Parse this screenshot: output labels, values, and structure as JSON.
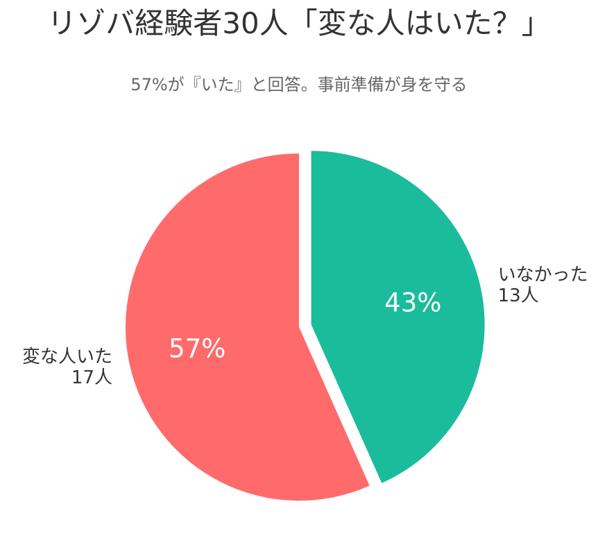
{
  "chart_data": {
    "type": "pie",
    "title": "リゾバ経験者30人「変な人はいた？」",
    "subtitle": "57%が『いた』と回答。事前準備が身を守る",
    "categories": [
      "変な人いた",
      "いなかった"
    ],
    "values": [
      17,
      13
    ],
    "percent_labels": [
      "57%",
      "43%"
    ],
    "count_labels": [
      "17人",
      "13人"
    ],
    "colors": [
      "#ff6b6b",
      "#1abc9c"
    ],
    "exploded": [
      false,
      true
    ]
  }
}
